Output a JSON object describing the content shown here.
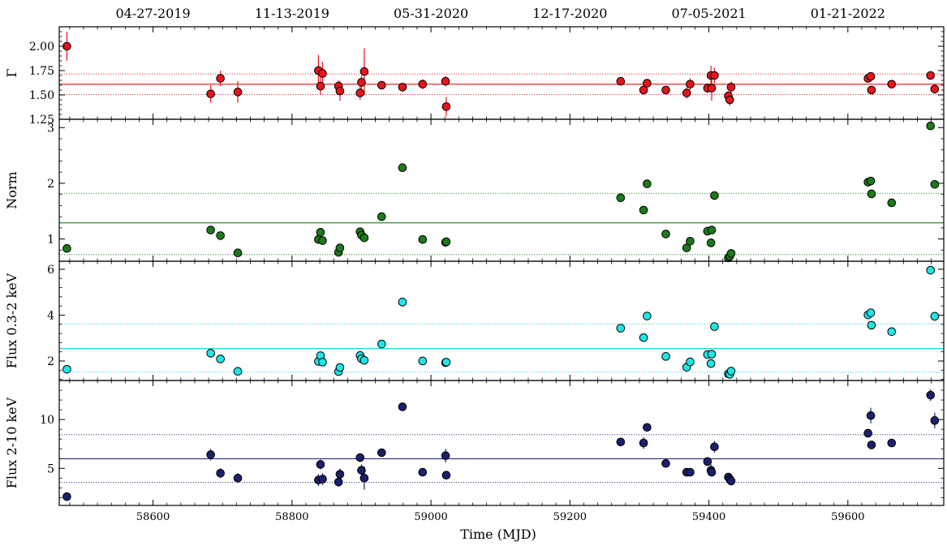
{
  "chart_data": {
    "type": "scatter",
    "xlabel": "Time (MJD)",
    "xlim": [
      58465,
      59738
    ],
    "x_ticks": [
      58600,
      58800,
      59000,
      59200,
      59400,
      59600
    ],
    "top_axis_dates": [
      {
        "mjd": 58600,
        "label": "04-27-2019"
      },
      {
        "mjd": 58800,
        "label": "11-13-2019"
      },
      {
        "mjd": 59000,
        "label": "05-31-2020"
      },
      {
        "mjd": 59200,
        "label": "12-17-2020"
      },
      {
        "mjd": 59400,
        "label": "07-05-2021"
      },
      {
        "mjd": 59600,
        "label": "01-21-2022"
      }
    ],
    "panels": [
      {
        "ylabel": "Γ",
        "ylim": [
          1.25,
          2.2
        ],
        "yticks": [
          1.25,
          1.5,
          1.75,
          2.0
        ],
        "tick_decimals": 2,
        "color": "#e8141b",
        "line_color": "#e8141b",
        "mean": 1.61,
        "band": [
          1.505,
          1.715
        ],
        "points": [
          {
            "x": 58476,
            "y": 2.0,
            "err": 0.15
          },
          {
            "x": 58683,
            "y": 1.51,
            "err": 0.09
          },
          {
            "x": 58697,
            "y": 1.67,
            "err": 0.08
          },
          {
            "x": 58722,
            "y": 1.53,
            "err": 0.11
          },
          {
            "x": 58838,
            "y": 1.75,
            "err": 0.16
          },
          {
            "x": 58841,
            "y": 1.59,
            "err": 0.09
          },
          {
            "x": 58844,
            "y": 1.72,
            "err": 0.12
          },
          {
            "x": 58867,
            "y": 1.59,
            "err": 0.06
          },
          {
            "x": 58869,
            "y": 1.54,
            "err": 0.1
          },
          {
            "x": 58898,
            "y": 1.52,
            "err": 0.07
          },
          {
            "x": 58900,
            "y": 1.63,
            "err": 0.07
          },
          {
            "x": 58904,
            "y": 1.74,
            "err": 0.24
          },
          {
            "x": 58929,
            "y": 1.6,
            "err": 0.04
          },
          {
            "x": 58959,
            "y": 1.58,
            "err": 0.04
          },
          {
            "x": 58988,
            "y": 1.61,
            "err": 0.05
          },
          {
            "x": 59021,
            "y": 1.64,
            "err": 0.05
          },
          {
            "x": 59022,
            "y": 1.38,
            "err": 0.1
          },
          {
            "x": 59273,
            "y": 1.64,
            "err": 0.04
          },
          {
            "x": 59306,
            "y": 1.55,
            "err": 0.05
          },
          {
            "x": 59311,
            "y": 1.62,
            "err": 0.04
          },
          {
            "x": 59338,
            "y": 1.55,
            "err": 0.03
          },
          {
            "x": 59368,
            "y": 1.52,
            "err": 0.06
          },
          {
            "x": 59373,
            "y": 1.61,
            "err": 0.06
          },
          {
            "x": 59398,
            "y": 1.57,
            "err": 0.05
          },
          {
            "x": 59403,
            "y": 1.7,
            "err": 0.1
          },
          {
            "x": 59404,
            "y": 1.57,
            "err": 0.13
          },
          {
            "x": 59408,
            "y": 1.7,
            "err": 0.08
          },
          {
            "x": 59428,
            "y": 1.49,
            "err": 0.05
          },
          {
            "x": 59430,
            "y": 1.45,
            "err": 0.06
          },
          {
            "x": 59432,
            "y": 1.58,
            "err": 0.06
          },
          {
            "x": 59629,
            "y": 1.67,
            "err": 0.04
          },
          {
            "x": 59633,
            "y": 1.69,
            "err": 0.04
          },
          {
            "x": 59634,
            "y": 1.55,
            "err": 0.04
          },
          {
            "x": 59663,
            "y": 1.61,
            "err": 0.04
          },
          {
            "x": 59719,
            "y": 1.7,
            "err": 0.04
          },
          {
            "x": 59725,
            "y": 1.56,
            "err": 0.05
          }
        ]
      },
      {
        "ylabel": "Norm",
        "ylim": [
          0.6,
          3.15
        ],
        "yticks": [
          1,
          2,
          3
        ],
        "tick_decimals": 0,
        "color": "#1c7a1c",
        "line_color": "#1c7a1c",
        "mean": 1.29,
        "band": [
          0.72,
          1.82
        ],
        "points": [
          {
            "x": 58476,
            "y": 0.83
          },
          {
            "x": 58683,
            "y": 1.16
          },
          {
            "x": 58697,
            "y": 1.06
          },
          {
            "x": 58722,
            "y": 0.75
          },
          {
            "x": 58838,
            "y": 0.99
          },
          {
            "x": 58841,
            "y": 1.12
          },
          {
            "x": 58844,
            "y": 0.97
          },
          {
            "x": 58867,
            "y": 0.76
          },
          {
            "x": 58869,
            "y": 0.84
          },
          {
            "x": 58898,
            "y": 1.13
          },
          {
            "x": 58900,
            "y": 1.07
          },
          {
            "x": 58904,
            "y": 1.02
          },
          {
            "x": 58929,
            "y": 1.4
          },
          {
            "x": 58959,
            "y": 2.28
          },
          {
            "x": 58988,
            "y": 0.99
          },
          {
            "x": 59021,
            "y": 0.94
          },
          {
            "x": 59022,
            "y": 0.95
          },
          {
            "x": 59273,
            "y": 1.74
          },
          {
            "x": 59306,
            "y": 1.52
          },
          {
            "x": 59311,
            "y": 1.99
          },
          {
            "x": 59338,
            "y": 1.09
          },
          {
            "x": 59368,
            "y": 0.84
          },
          {
            "x": 59373,
            "y": 0.96
          },
          {
            "x": 59398,
            "y": 1.14
          },
          {
            "x": 59403,
            "y": 0.93
          },
          {
            "x": 59404,
            "y": 1.16
          },
          {
            "x": 59408,
            "y": 1.78
          },
          {
            "x": 59428,
            "y": 0.66
          },
          {
            "x": 59430,
            "y": 0.69
          },
          {
            "x": 59432,
            "y": 0.74
          },
          {
            "x": 59629,
            "y": 2.02
          },
          {
            "x": 59633,
            "y": 2.04
          },
          {
            "x": 59634,
            "y": 1.81
          },
          {
            "x": 59663,
            "y": 1.65
          },
          {
            "x": 59719,
            "y": 3.03
          },
          {
            "x": 59725,
            "y": 1.98
          }
        ]
      },
      {
        "ylabel": "Flux 0.3-2 keV",
        "ylim": [
          1.15,
          6.35
        ],
        "yticks": [
          2,
          4,
          6
        ],
        "tick_decimals": 0,
        "color": "#1ee6e6",
        "line_color": "#18c8d8",
        "mean": 2.54,
        "band": [
          1.51,
          3.62
        ],
        "points": [
          {
            "x": 58476,
            "y": 1.64
          },
          {
            "x": 58683,
            "y": 2.34
          },
          {
            "x": 58697,
            "y": 2.09
          },
          {
            "x": 58722,
            "y": 1.55
          },
          {
            "x": 58838,
            "y": 1.98
          },
          {
            "x": 58841,
            "y": 2.23
          },
          {
            "x": 58844,
            "y": 1.95
          },
          {
            "x": 58867,
            "y": 1.54
          },
          {
            "x": 58869,
            "y": 1.72
          },
          {
            "x": 58898,
            "y": 2.24
          },
          {
            "x": 58900,
            "y": 2.1
          },
          {
            "x": 58904,
            "y": 2.03
          },
          {
            "x": 58929,
            "y": 2.74
          },
          {
            "x": 58959,
            "y": 4.57
          },
          {
            "x": 58988,
            "y": 2.0
          },
          {
            "x": 59021,
            "y": 1.93
          },
          {
            "x": 59022,
            "y": 1.95
          },
          {
            "x": 59273,
            "y": 3.43
          },
          {
            "x": 59306,
            "y": 3.02
          },
          {
            "x": 59311,
            "y": 3.96
          },
          {
            "x": 59338,
            "y": 2.2
          },
          {
            "x": 59368,
            "y": 1.73
          },
          {
            "x": 59373,
            "y": 1.96
          },
          {
            "x": 59398,
            "y": 2.28
          },
          {
            "x": 59403,
            "y": 1.89
          },
          {
            "x": 59404,
            "y": 2.3
          },
          {
            "x": 59408,
            "y": 3.5
          },
          {
            "x": 59428,
            "y": 1.44
          },
          {
            "x": 59430,
            "y": 1.42
          },
          {
            "x": 59432,
            "y": 1.56
          },
          {
            "x": 59629,
            "y": 4.01
          },
          {
            "x": 59633,
            "y": 4.1
          },
          {
            "x": 59634,
            "y": 3.56
          },
          {
            "x": 59663,
            "y": 3.28
          },
          {
            "x": 59719,
            "y": 5.96
          },
          {
            "x": 59725,
            "y": 3.95
          }
        ]
      },
      {
        "ylabel": "Flux 2-10 keV",
        "ylim": [
          1.2,
          14.0
        ],
        "yticks": [
          5,
          10
        ],
        "tick_decimals": 0,
        "color": "#1a1f6e",
        "line_color": "#1a1f6e",
        "mean": 5.98,
        "band": [
          3.55,
          8.45
        ],
        "points": [
          {
            "x": 58476,
            "y": 2.1,
            "err": 0.0
          },
          {
            "x": 58683,
            "y": 6.4,
            "err": 0.6
          },
          {
            "x": 58697,
            "y": 4.5,
            "err": 0.5
          },
          {
            "x": 58722,
            "y": 4.0,
            "err": 0.5
          },
          {
            "x": 58838,
            "y": 3.8,
            "err": 0.6
          },
          {
            "x": 58841,
            "y": 5.4,
            "err": 0.5
          },
          {
            "x": 58844,
            "y": 3.9,
            "err": 0.6
          },
          {
            "x": 58867,
            "y": 3.6,
            "err": 0.5
          },
          {
            "x": 58869,
            "y": 4.4,
            "err": 0.6
          },
          {
            "x": 58898,
            "y": 6.1,
            "err": 0.3
          },
          {
            "x": 58900,
            "y": 4.8,
            "err": 0.6
          },
          {
            "x": 58904,
            "y": 4.0,
            "err": 1.2
          },
          {
            "x": 58929,
            "y": 6.6,
            "err": 0.4
          },
          {
            "x": 58959,
            "y": 11.3,
            "err": 0.3
          },
          {
            "x": 58988,
            "y": 4.6,
            "err": 0.3
          },
          {
            "x": 59021,
            "y": 6.3,
            "err": 0.7
          },
          {
            "x": 59022,
            "y": 4.3,
            "err": 0.3
          },
          {
            "x": 59273,
            "y": 7.7,
            "err": 0.3
          },
          {
            "x": 59306,
            "y": 7.6,
            "err": 0.6
          },
          {
            "x": 59311,
            "y": 9.2,
            "err": 0.4
          },
          {
            "x": 59338,
            "y": 5.5,
            "err": 0.3
          },
          {
            "x": 59368,
            "y": 4.6,
            "err": 0.2
          },
          {
            "x": 59373,
            "y": 4.6,
            "err": 0.3
          },
          {
            "x": 59398,
            "y": 5.7,
            "err": 0.3
          },
          {
            "x": 59403,
            "y": 4.8,
            "err": 0.6
          },
          {
            "x": 59404,
            "y": 4.6,
            "err": 0.3
          },
          {
            "x": 59408,
            "y": 7.2,
            "err": 0.6
          },
          {
            "x": 59428,
            "y": 4.1,
            "err": 0.3
          },
          {
            "x": 59430,
            "y": 3.9,
            "err": 0.4
          },
          {
            "x": 59432,
            "y": 3.7,
            "err": 0.3
          },
          {
            "x": 59629,
            "y": 8.6,
            "err": 0.3
          },
          {
            "x": 59633,
            "y": 10.4,
            "err": 0.8
          },
          {
            "x": 59634,
            "y": 7.4,
            "err": 0.3
          },
          {
            "x": 59663,
            "y": 7.6,
            "err": 0.3
          },
          {
            "x": 59719,
            "y": 12.5,
            "err": 0.6
          },
          {
            "x": 59725,
            "y": 9.9,
            "err": 0.8
          }
        ]
      }
    ]
  }
}
